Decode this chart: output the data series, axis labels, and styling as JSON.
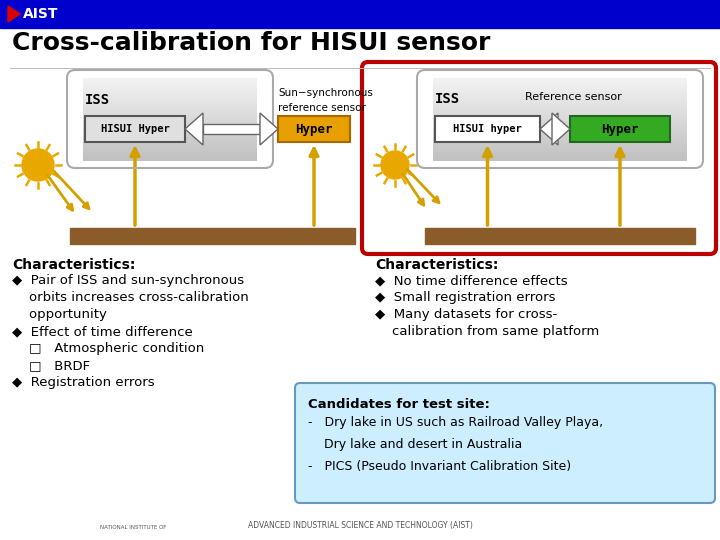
{
  "title": "Cross-calibration for HISUI sensor",
  "header_bg": "#0000CC",
  "bg_color": "#FFFFFF",
  "left_panel": {
    "iss_label": "ISS",
    "hisui_label": "HISUI Hyper",
    "ref_top": "Sun−synchronous",
    "ref_bot": "reference sensor",
    "hyper_label": "Hyper",
    "hisui_box_grad_top": "#E8E8E8",
    "hisui_box_grad_bot": "#AAAAAA",
    "hyper_box_color": "#E8A000"
  },
  "right_panel": {
    "iss_label": "ISS",
    "hisui_label": "HISUI hyper",
    "ref_label": "Reference sensor",
    "hyper_label": "Hyper",
    "outer_border": "#BB0000",
    "hisui_box_grad_top": "#E8E8E8",
    "hisui_box_grad_bot": "#AAAAAA",
    "hyper_box_color": "#33AA22"
  },
  "left_chars_title": "Characteristics:",
  "left_chars_lines": [
    "◆  Pair of ISS and sun-synchronous",
    "    orbits increases cross-calibration",
    "    opportunity",
    "◆  Effect of time difference",
    "    □   Atmospheric condition",
    "    □   BRDF",
    "◆  Registration errors"
  ],
  "right_chars_title": "Characteristics:",
  "right_chars_lines": [
    "◆  No time difference effects",
    "◆  Small registration errors",
    "◆  Many datasets for cross-",
    "    calibration from same platform"
  ],
  "cand_title": "Candidates for test site:",
  "cand_lines": [
    "-   Dry lake in US such as Railroad Valley Playa,",
    "    Dry lake and desert in Australia",
    "-   PICS (Pseudo Invariant Calibration Site)"
  ],
  "ground_color": "#8B5C2A",
  "arrow_color": "#D4A000",
  "sun_color": "#E8A800",
  "footer_text": "ADVANCED INDUSTRIAL SCIENCE AND TECHNOLOGY (AIST)"
}
